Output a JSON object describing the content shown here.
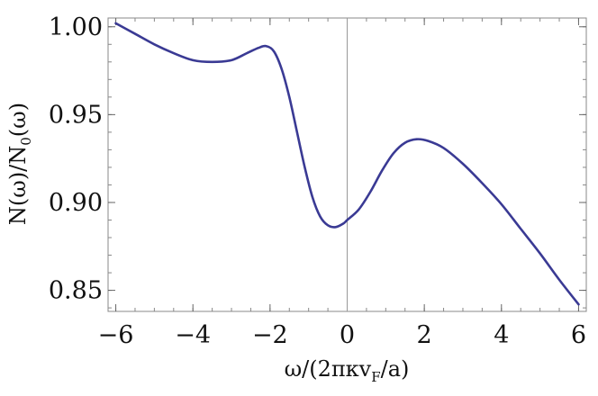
{
  "chart_data": {
    "type": "line",
    "title": "",
    "xlabel": "ω/(2πκv_F/a)",
    "ylabel": "N(ω)/N_0(ω)",
    "xlim": [
      -6.2,
      6.2
    ],
    "ylim": [
      0.838,
      1.005
    ],
    "xticks": [
      -6,
      -4,
      -2,
      0,
      2,
      4,
      6
    ],
    "xtick_labels": [
      "−6",
      "−4",
      "−2",
      "0",
      "2",
      "4",
      "6"
    ],
    "yticks": [
      0.85,
      0.9,
      0.95,
      1.0
    ],
    "ytick_labels": [
      "0.85",
      "0.90",
      "0.95",
      "1.00"
    ],
    "grid": false,
    "vertical_reference_line_x": 0,
    "line_color": "#3a3a94",
    "series": [
      {
        "name": "",
        "x": [
          -6,
          -5.5,
          -5,
          -4.5,
          -4,
          -3.5,
          -3,
          -2.6,
          -2.3,
          -2.1,
          -1.9,
          -1.7,
          -1.5,
          -1.3,
          -1.1,
          -0.9,
          -0.7,
          -0.5,
          -0.3,
          -0.1,
          0,
          0.3,
          0.6,
          0.9,
          1.2,
          1.5,
          1.8,
          2.1,
          2.5,
          3,
          3.5,
          4,
          4.5,
          5,
          5.5,
          6
        ],
        "y": [
          1.002,
          0.996,
          0.99,
          0.985,
          0.981,
          0.98,
          0.981,
          0.985,
          0.988,
          0.989,
          0.986,
          0.976,
          0.96,
          0.94,
          0.92,
          0.903,
          0.892,
          0.887,
          0.886,
          0.888,
          0.89,
          0.896,
          0.906,
          0.918,
          0.928,
          0.934,
          0.936,
          0.935,
          0.931,
          0.922,
          0.911,
          0.899,
          0.885,
          0.871,
          0.856,
          0.842
        ]
      }
    ]
  }
}
